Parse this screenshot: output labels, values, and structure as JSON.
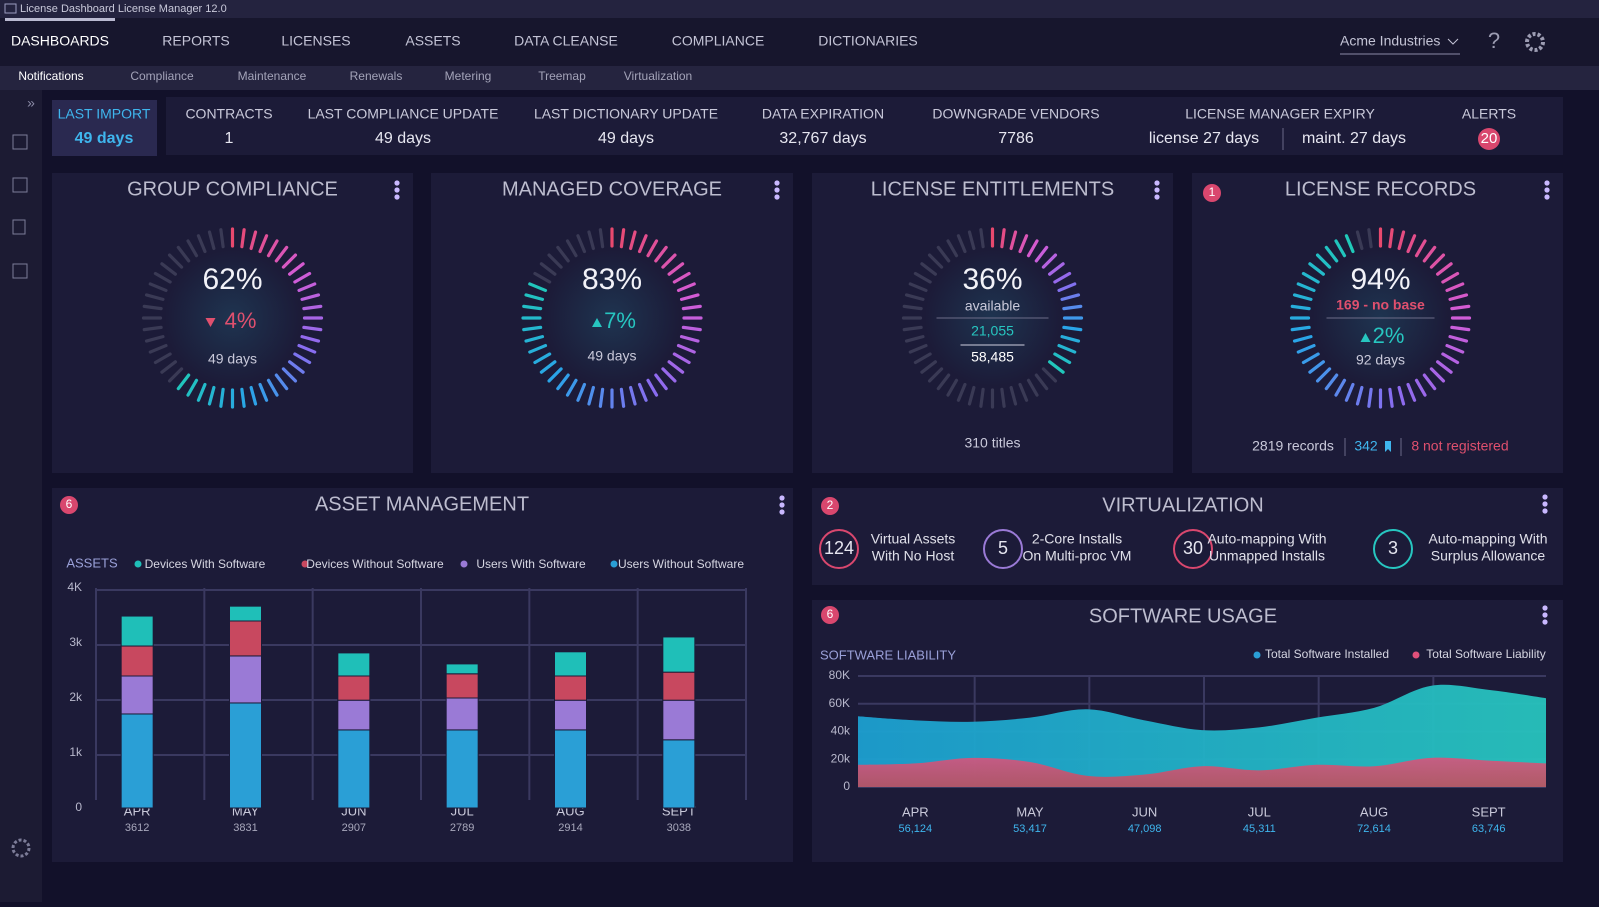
{
  "window_title": "License Dashboard License Manager 12.0",
  "nav": [
    "DASHBOARDS",
    "REPORTS",
    "LICENSES",
    "ASSETS",
    "DATA CLEANSE",
    "COMPLIANCE",
    "DICTIONARIES"
  ],
  "company": "Acme Industries",
  "subnav": [
    "Notifications",
    "Compliance",
    "Maintenance",
    "Renewals",
    "Metering",
    "Treemap",
    "Virtualization"
  ],
  "stats": [
    {
      "label": "LAST IMPORT",
      "value": "49 days"
    },
    {
      "label": "CONTRACTS",
      "value": 1
    },
    {
      "label": "LAST COMPLIANCE UPDATE",
      "value": "49 days"
    },
    {
      "label": "LAST DICTIONARY UPDATE",
      "value": "49 days"
    },
    {
      "label": "DATA EXPIRATION",
      "value": "32,767 days"
    },
    {
      "label": "DOWNGRADE VENDORS",
      "value": 7786
    },
    {
      "label": "LICENSE MANAGER EXPIRY",
      "value": "license  27 days",
      "value2": "maint. 27 days"
    },
    {
      "label": "ALERTS",
      "value": 20
    }
  ],
  "gauges": [
    {
      "title": "GROUP COMPLIANCE",
      "value": 62,
      "value_label": "62%",
      "change": "4%",
      "direction": "down",
      "footer": "49 days"
    },
    {
      "title": "MANAGED COVERAGE",
      "value": 83,
      "value_label": "83%",
      "change": "7%",
      "direction": "up",
      "footer": "49 days"
    },
    {
      "title": "LICENSE ENTITLEMENTS",
      "value": 36,
      "value_label": "36%",
      "caption": "available",
      "line1": "21,055",
      "line2": "58,485",
      "footer": "310 titles"
    },
    {
      "title": "LICENSE RECORDS",
      "badge": 1,
      "value": 94,
      "value_label": "94%",
      "note": "169 - no base",
      "change": "2%",
      "direction": "up",
      "footer": "92 days",
      "records": "2819 records",
      "flagged": 342,
      "unregistered": "8 not registered"
    }
  ],
  "virtualization": {
    "title": "VIRTUALIZATION",
    "badge": 2,
    "items": [
      {
        "value": 124,
        "lines": [
          "Virtual Assets",
          "With No Host"
        ],
        "color": "#d9476e"
      },
      {
        "value": 5,
        "lines": [
          "2-Core Installs",
          "On Multi-proc VM"
        ],
        "color": "#9a7ad6"
      },
      {
        "value": 30,
        "lines": [
          "Auto-mapping With",
          "Unmapped Installs"
        ],
        "color": "#d9476e"
      },
      {
        "value": 3,
        "lines": [
          "Auto-mapping With",
          "Surplus Allowance"
        ],
        "color": "#27c6c0"
      }
    ]
  },
  "chart_data": [
    {
      "type": "bar",
      "stacked": true,
      "title": "ASSET MANAGEMENT",
      "badge": 6,
      "y_label": "ASSETS",
      "categories": [
        "APR",
        "MAY",
        "JUN",
        "JUL",
        "AUG",
        "SEPT"
      ],
      "category_notes": [
        3612,
        3831,
        2907,
        2789,
        2914,
        3038
      ],
      "series": [
        {
          "name": "Devices With Software",
          "color": "#1fbfb8",
          "values": [
            545,
            270,
            420,
            180,
            440,
            640
          ]
        },
        {
          "name": "Devices Without Software",
          "color": "#c8485f",
          "values": [
            545,
            635,
            440,
            440,
            440,
            510
          ]
        },
        {
          "name": "Users With Software",
          "color": "#9a7ad6",
          "values": [
            690,
            855,
            540,
            580,
            540,
            720
          ]
        },
        {
          "name": "Users Without Software",
          "color": "#2a9fd6",
          "values": [
            1710,
            1910,
            1420,
            1420,
            1420,
            1240
          ]
        }
      ],
      "ylim": [
        0,
        4000
      ],
      "yticks": [
        0,
        {
          "value": 1000,
          "label": "1k"
        },
        {
          "value": 2000,
          "label": "2k"
        },
        {
          "value": 3000,
          "label": "3k"
        },
        {
          "value": 4000,
          "label": "4K"
        }
      ],
      "grid": true
    },
    {
      "type": "area",
      "title": "SOFTWARE USAGE",
      "badge": 6,
      "y_label": "SOFTWARE LIABILITY",
      "categories": [
        null,
        "APR",
        null,
        "MAY",
        null,
        "JUN",
        null,
        "JUL",
        null,
        "AUG",
        null,
        "SEPT",
        null
      ],
      "category_notes": [
        null,
        "56,124",
        null,
        "53,417",
        null,
        "47,098",
        null,
        "45,311",
        null,
        "72,614",
        null,
        "63,746",
        null
      ],
      "series": [
        {
          "name": "Total Software Installed",
          "color": "#2a9fd6",
          "values": [
            51000,
            48000,
            47000,
            50000,
            56000,
            48000,
            41000,
            43000,
            50000,
            57000,
            73000,
            70000,
            64000
          ]
        },
        {
          "name": "Total Software Liability",
          "color": "#e0507a",
          "values": [
            16000,
            17000,
            21000,
            18000,
            8000,
            9000,
            15000,
            12000,
            16000,
            15000,
            21000,
            19000,
            17000
          ]
        }
      ],
      "ylim": [
        0,
        80000
      ],
      "yticks": [
        0,
        {
          "value": 20000,
          "label": "20k"
        },
        {
          "value": 40000,
          "label": "40k"
        },
        {
          "value": 60000,
          "label": "60K"
        },
        {
          "value": 80000,
          "label": "80K"
        }
      ],
      "grid": true
    }
  ]
}
